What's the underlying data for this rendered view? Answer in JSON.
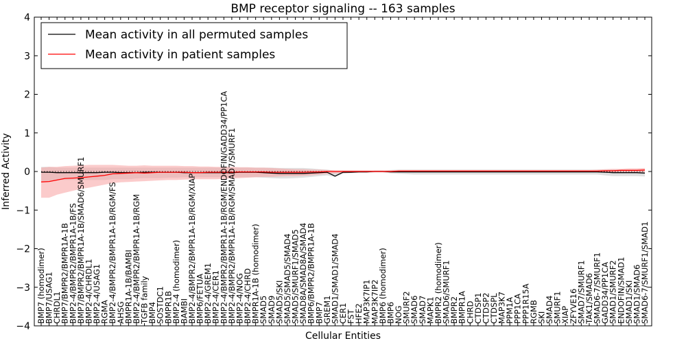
{
  "chart_data": {
    "type": "line",
    "title": "BMP receptor signaling -- 163 samples",
    "xlabel": "Cellular Entities",
    "ylabel": "Inferred Activity",
    "ylim": [
      -4,
      4
    ],
    "yticks": [
      -4,
      -3,
      -2,
      -1,
      0,
      1,
      2,
      3,
      4
    ],
    "ytick_labels": [
      "−4",
      "−3",
      "−2",
      "−1",
      "0",
      "1",
      "2",
      "3",
      "4"
    ],
    "legend_position": "top-left",
    "categories": [
      "BMP7 (homodimer)",
      "BMP7/USAG1",
      "CHRDL1",
      "BMP7/BMPR2/BMPR1A-1B",
      "BMP2-4/BMPR2/BMPR1A-1B/FS",
      "BMP7/BMPR2/BMPR1A-1B/SMAD6/SMURF1",
      "BMP2-4/CHRDL1",
      "BMP2-4/USAG1",
      "RGMA",
      "BMP2-4/BMPR2/BMPR1A-1B/RGM/FS",
      "AHSG",
      "BMPR1A-1B/BAMBI",
      "BMP2-4/BMPR2/BMPR1A-1B/RGM",
      "TGFB family",
      "BMP4",
      "SOSTDC1",
      "BMPR1B",
      "BMP2-4 (homodimer)",
      "BAMBI",
      "BMP2-4/BMPR2/BMPR1A-1B/RGM/XIAP",
      "BMP6/FETUA",
      "BMP2-4/GREM1",
      "BMP2-4/CER1",
      "BMP2-4/BMPR2/BMPR1A-1B/RGM/ENDOFIN/GADD34/PP1CA",
      "BMP2-4/BMPR2/BMPR1A-1B/RGM/SMAD7/SMURF1",
      "BMP2-4/NOG",
      "BMP2-4/CHRD",
      "BMPR1A-1B (homodimer)",
      "SMAD5",
      "SMAD9",
      "SMAD5/SKI",
      "SMAD5/SMAD5/SMAD4",
      "SMAD5/SMURF1/SMAD5",
      "SMAD8A/SMAD8A/SMAD4",
      "BMP6/BMPR2/BMPR1A-1B",
      "BMP7",
      "GREM1",
      "SMAD1/SMAD1/SMAD4",
      "CER1",
      "FST",
      "HFE2",
      "MAP3K7IP1",
      "MAP3K7IP2",
      "BMP6 (homodimer)",
      "BMP6",
      "NOG",
      "SMURF2",
      "SMAD6",
      "SMAD7",
      "MAPK1",
      "BMPR2 (homodimer)",
      "SMAD6/SMURF1",
      "BMPR2",
      "BMPR1A",
      "CHRD",
      "CTDSP1",
      "CTDSP2",
      "CTDSPL",
      "MAP3K7",
      "PPM1A",
      "PPP1CA",
      "PPP1R15A",
      "RGMB",
      "SKI",
      "SMAD4",
      "SMURF1",
      "XIAP",
      "ZFYVE16",
      "SMAD7/SMURF1",
      "TAK1/SMAD6",
      "SMAD6-7/SMURF1",
      "GADD34/PP1CA",
      "SMAD1/SMURF2",
      "ENDOFIN/SMAD1",
      "SMAD1/SKI",
      "SMAD1/SMAD6",
      "SMAD6-7/SMURF1/SMAD1"
    ],
    "series": [
      {
        "name": "Mean activity in all permuted samples",
        "color": "#000000",
        "band_color": "#cccccc",
        "values": [
          -0.02,
          -0.02,
          -0.03,
          -0.03,
          -0.03,
          -0.03,
          -0.03,
          -0.03,
          -0.02,
          -0.02,
          -0.03,
          -0.03,
          -0.03,
          -0.02,
          -0.02,
          -0.02,
          -0.02,
          -0.02,
          -0.03,
          -0.03,
          -0.03,
          -0.03,
          -0.03,
          -0.03,
          -0.03,
          -0.02,
          -0.02,
          -0.02,
          -0.03,
          -0.04,
          -0.05,
          -0.05,
          -0.05,
          -0.05,
          -0.04,
          -0.03,
          -0.02,
          -0.12,
          -0.02,
          -0.02,
          -0.01,
          -0.01,
          0.0,
          0.0,
          -0.01,
          -0.01,
          -0.01,
          -0.01,
          -0.01,
          -0.01,
          -0.01,
          -0.01,
          -0.01,
          -0.01,
          -0.01,
          -0.01,
          -0.01,
          -0.01,
          -0.01,
          -0.01,
          -0.01,
          -0.01,
          -0.01,
          -0.01,
          -0.01,
          -0.01,
          -0.01,
          -0.01,
          -0.01,
          -0.01,
          -0.01,
          -0.02,
          -0.03,
          -0.03,
          -0.03,
          -0.03,
          -0.04
        ],
        "band_lower": [
          -0.25,
          -0.25,
          -0.22,
          -0.22,
          -0.22,
          -0.22,
          -0.22,
          -0.22,
          -0.22,
          -0.2,
          -0.2,
          -0.2,
          -0.18,
          -0.17,
          -0.17,
          -0.17,
          -0.16,
          -0.16,
          -0.15,
          -0.15,
          -0.15,
          -0.15,
          -0.15,
          -0.15,
          -0.15,
          -0.15,
          -0.15,
          -0.15,
          -0.16,
          -0.17,
          -0.18,
          -0.18,
          -0.17,
          -0.16,
          -0.14,
          -0.12,
          -0.1,
          -0.14,
          -0.06,
          -0.04,
          -0.03,
          -0.03,
          -0.02,
          -0.02,
          -0.05,
          -0.06,
          -0.07,
          -0.08,
          -0.08,
          -0.08,
          -0.08,
          -0.08,
          -0.08,
          -0.08,
          -0.08,
          -0.08,
          -0.08,
          -0.08,
          -0.08,
          -0.08,
          -0.08,
          -0.08,
          -0.08,
          -0.08,
          -0.08,
          -0.08,
          -0.08,
          -0.08,
          -0.08,
          -0.08,
          -0.08,
          -0.1,
          -0.12,
          -0.12,
          -0.12,
          -0.12,
          -0.13
        ],
        "band_upper": [
          0.12,
          0.12,
          0.1,
          0.1,
          0.1,
          0.1,
          0.1,
          0.1,
          0.1,
          0.1,
          0.1,
          0.1,
          0.1,
          0.1,
          0.1,
          0.1,
          0.1,
          0.1,
          0.1,
          0.1,
          0.1,
          0.1,
          0.1,
          0.1,
          0.1,
          0.1,
          0.1,
          0.1,
          0.1,
          0.1,
          0.09,
          0.09,
          0.09,
          0.09,
          0.08,
          0.06,
          0.05,
          0.02,
          0.02,
          0.02,
          0.02,
          0.02,
          0.02,
          0.02,
          0.04,
          0.05,
          0.05,
          0.05,
          0.05,
          0.05,
          0.05,
          0.05,
          0.05,
          0.05,
          0.05,
          0.05,
          0.05,
          0.05,
          0.05,
          0.05,
          0.05,
          0.05,
          0.05,
          0.05,
          0.05,
          0.05,
          0.05,
          0.05,
          0.05,
          0.05,
          0.05,
          0.05,
          0.05,
          0.05,
          0.05,
          0.05,
          0.05
        ]
      },
      {
        "name": "Mean activity in patient samples",
        "color": "#ff0000",
        "band_color": "#f7a0a0",
        "values": [
          -0.27,
          -0.26,
          -0.22,
          -0.18,
          -0.17,
          -0.16,
          -0.14,
          -0.12,
          -0.1,
          -0.06,
          -0.05,
          -0.04,
          -0.03,
          -0.04,
          -0.03,
          -0.02,
          -0.02,
          -0.02,
          -0.02,
          -0.03,
          -0.03,
          -0.02,
          -0.02,
          -0.02,
          -0.02,
          -0.01,
          -0.01,
          -0.01,
          -0.01,
          -0.02,
          -0.02,
          -0.02,
          -0.02,
          -0.02,
          -0.01,
          -0.01,
          0.0,
          0.0,
          0.0,
          0.0,
          0.0,
          0.0,
          0.0,
          0.0,
          0.0,
          0.01,
          0.01,
          0.01,
          0.01,
          0.01,
          0.01,
          0.01,
          0.01,
          0.01,
          0.01,
          0.01,
          0.01,
          0.01,
          0.01,
          0.01,
          0.01,
          0.01,
          0.01,
          0.01,
          0.01,
          0.01,
          0.01,
          0.01,
          0.01,
          0.01,
          0.01,
          0.02,
          0.02,
          0.03,
          0.03,
          0.03,
          0.04
        ],
        "band_lower": [
          -0.68,
          -0.68,
          -0.6,
          -0.55,
          -0.5,
          -0.45,
          -0.42,
          -0.38,
          -0.34,
          -0.3,
          -0.28,
          -0.27,
          -0.26,
          -0.25,
          -0.24,
          -0.23,
          -0.22,
          -0.22,
          -0.21,
          -0.2,
          -0.2,
          -0.2,
          -0.2,
          -0.19,
          -0.18,
          -0.17,
          -0.16,
          -0.15,
          -0.14,
          -0.14,
          -0.13,
          -0.12,
          -0.12,
          -0.11,
          -0.1,
          -0.08,
          -0.06,
          -0.05,
          -0.04,
          -0.03,
          -0.02,
          -0.02,
          -0.02,
          -0.02,
          -0.02,
          -0.02,
          -0.02,
          -0.02,
          -0.02,
          -0.02,
          -0.02,
          -0.02,
          -0.02,
          -0.02,
          -0.02,
          -0.02,
          -0.02,
          -0.02,
          -0.02,
          -0.02,
          -0.02,
          -0.02,
          -0.02,
          -0.02,
          -0.02,
          -0.02,
          -0.02,
          -0.02,
          -0.02,
          -0.02,
          -0.02,
          -0.02,
          -0.02,
          -0.02,
          -0.02,
          -0.02,
          -0.02
        ],
        "band_upper": [
          0.1,
          0.12,
          0.12,
          0.14,
          0.15,
          0.16,
          0.17,
          0.17,
          0.17,
          0.17,
          0.16,
          0.15,
          0.15,
          0.16,
          0.15,
          0.15,
          0.15,
          0.15,
          0.14,
          0.14,
          0.13,
          0.13,
          0.12,
          0.12,
          0.12,
          0.11,
          0.11,
          0.1,
          0.1,
          0.09,
          0.08,
          0.07,
          0.06,
          0.06,
          0.05,
          0.05,
          0.04,
          0.03,
          0.03,
          0.03,
          0.03,
          0.03,
          0.03,
          0.03,
          0.03,
          0.04,
          0.04,
          0.04,
          0.04,
          0.04,
          0.04,
          0.04,
          0.04,
          0.04,
          0.04,
          0.04,
          0.04,
          0.04,
          0.04,
          0.04,
          0.04,
          0.04,
          0.04,
          0.04,
          0.04,
          0.04,
          0.04,
          0.04,
          0.04,
          0.04,
          0.05,
          0.06,
          0.07,
          0.07,
          0.08,
          0.08,
          0.09
        ]
      }
    ]
  }
}
